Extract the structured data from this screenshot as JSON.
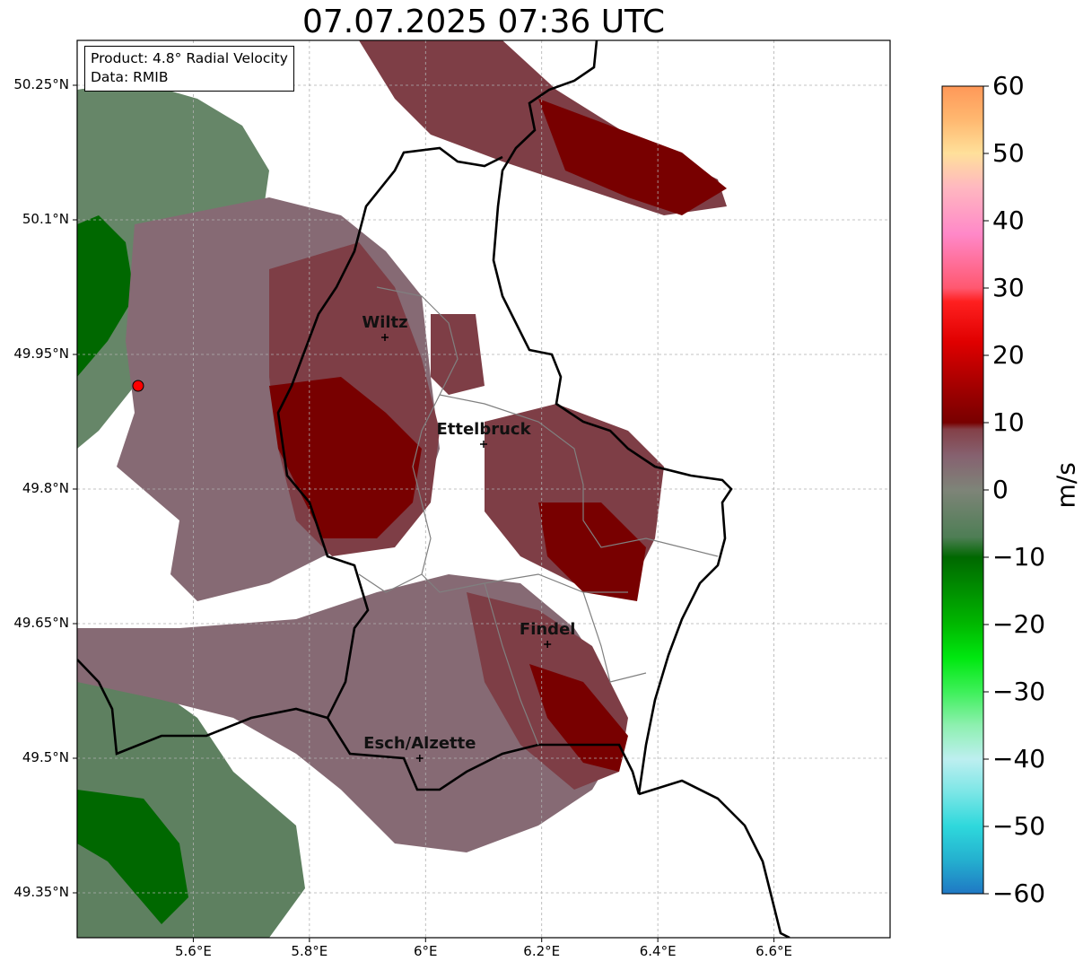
{
  "title": "07.07.2025 07:36 UTC",
  "info": {
    "product": "Product: 4.8° Radial Velocity",
    "source": "Data: RMIB"
  },
  "lat_labels": [
    "50.25°N",
    "50.1°N",
    "49.95°N",
    "49.8°N",
    "49.65°N",
    "49.5°N",
    "49.35°N"
  ],
  "lon_labels": [
    "5.6°E",
    "5.8°E",
    "6°E",
    "6.2°E",
    "6.4°E",
    "6.6°E"
  ],
  "towns": [
    {
      "name": "Wiltz",
      "lon": 5.93,
      "lat": 49.969
    },
    {
      "name": "Ettelbruck",
      "lon": 6.1,
      "lat": 49.85
    },
    {
      "name": "Findel",
      "lon": 6.21,
      "lat": 49.627
    },
    {
      "name": "Esch/Alzette",
      "lon": 5.99,
      "lat": 49.5
    }
  ],
  "radar_site": {
    "lon": 5.505,
    "lat": 49.915
  },
  "map_extent": {
    "lon_min": 5.4,
    "lon_max": 6.8,
    "lat_min": 49.3,
    "lat_max": 50.3
  },
  "colorbar": {
    "unit": "m/s",
    "min": -60,
    "max": 60,
    "ticks": [
      "60",
      "50",
      "40",
      "30",
      "20",
      "10",
      "0",
      "−10",
      "−20",
      "−30",
      "−40",
      "−50",
      "−60"
    ],
    "stops": [
      {
        "v": -60,
        "c": "#1f78c4"
      },
      {
        "v": -55,
        "c": "#24b0cf"
      },
      {
        "v": -50,
        "c": "#2ed8dc"
      },
      {
        "v": -45,
        "c": "#7ae6e6"
      },
      {
        "v": -40,
        "c": "#bdeff0"
      },
      {
        "v": -35,
        "c": "#8ef0b0"
      },
      {
        "v": -30,
        "c": "#3ef05a"
      },
      {
        "v": -25,
        "c": "#00e810"
      },
      {
        "v": -20,
        "c": "#00b800"
      },
      {
        "v": -15,
        "c": "#009000"
      },
      {
        "v": -10,
        "c": "#006800"
      },
      {
        "v": -7,
        "c": "#4e7e55"
      },
      {
        "v": 0,
        "c": "#7e8478"
      },
      {
        "v": 5,
        "c": "#866270"
      },
      {
        "v": 9,
        "c": "#844048"
      },
      {
        "v": 10,
        "c": "#780000"
      },
      {
        "v": 15,
        "c": "#a00000"
      },
      {
        "v": 22,
        "c": "#e00000"
      },
      {
        "v": 28,
        "c": "#ff2020"
      },
      {
        "v": 30,
        "c": "#ff5870"
      },
      {
        "v": 38,
        "c": "#ff88c8"
      },
      {
        "v": 45,
        "c": "#ffb8c0"
      },
      {
        "v": 50,
        "c": "#ffe09a"
      },
      {
        "v": 55,
        "c": "#ffb870"
      },
      {
        "v": 60,
        "c": "#ff9858"
      }
    ]
  },
  "colors": {
    "outbound_dark": "#780000",
    "outbound_mid": "#7e3e46",
    "near_zero": "#866a74",
    "inbound_mid": "#5e8060",
    "inbound_dark": "#006800"
  }
}
